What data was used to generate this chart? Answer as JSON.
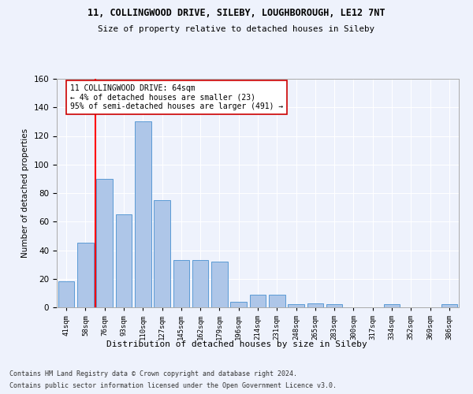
{
  "title_line1": "11, COLLINGWOOD DRIVE, SILEBY, LOUGHBOROUGH, LE12 7NT",
  "title_line2": "Size of property relative to detached houses in Sileby",
  "xlabel": "Distribution of detached houses by size in Sileby",
  "ylabel": "Number of detached properties",
  "bin_labels": [
    "41sqm",
    "58sqm",
    "76sqm",
    "93sqm",
    "110sqm",
    "127sqm",
    "145sqm",
    "162sqm",
    "179sqm",
    "196sqm",
    "214sqm",
    "231sqm",
    "248sqm",
    "265sqm",
    "283sqm",
    "300sqm",
    "317sqm",
    "334sqm",
    "352sqm",
    "369sqm",
    "386sqm"
  ],
  "bar_values": [
    18,
    45,
    90,
    65,
    130,
    75,
    33,
    33,
    32,
    4,
    9,
    9,
    2,
    3,
    2,
    0,
    0,
    2,
    0,
    0,
    2
  ],
  "bar_color": "#aec6e8",
  "bar_edgecolor": "#5b9bd5",
  "ylim": [
    0,
    160
  ],
  "yticks": [
    0,
    20,
    40,
    60,
    80,
    100,
    120,
    140,
    160
  ],
  "red_line_x": 1.5,
  "annotation_text": "11 COLLINGWOOD DRIVE: 64sqm\n← 4% of detached houses are smaller (23)\n95% of semi-detached houses are larger (491) →",
  "annotation_box_color": "#ffffff",
  "annotation_box_edgecolor": "#cc0000",
  "footer_line1": "Contains HM Land Registry data © Crown copyright and database right 2024.",
  "footer_line2": "Contains public sector information licensed under the Open Government Licence v3.0.",
  "background_color": "#eef2fc",
  "grid_color": "#ffffff",
  "bar_width": 0.85
}
